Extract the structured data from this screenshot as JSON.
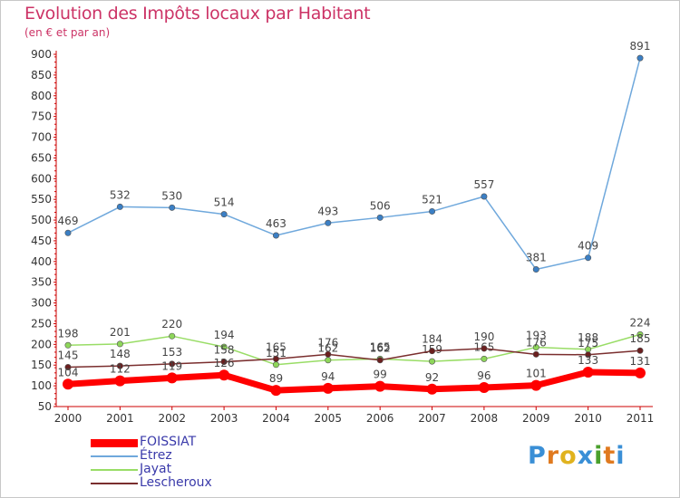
{
  "header": {
    "title": "Evolution des Impôts locaux par Habitant",
    "subtitle": "(en € et par an)"
  },
  "logo": {
    "text": "Proxiti",
    "colors": [
      "#3a8fd6",
      "#e07a1f",
      "#e0b31f",
      "#3a8fd6",
      "#4aa02c",
      "#e07a1f",
      "#3a8fd6"
    ]
  },
  "chart_data": {
    "type": "line",
    "x": [
      "2000",
      "2001",
      "2002",
      "2003",
      "2004",
      "2005",
      "2006",
      "2007",
      "2008",
      "2009",
      "2010",
      "2011"
    ],
    "ylim": [
      50,
      900
    ],
    "yticks": [
      50,
      100,
      150,
      200,
      250,
      300,
      350,
      400,
      450,
      500,
      550,
      600,
      650,
      700,
      750,
      800,
      850,
      900
    ],
    "grid": false,
    "legend_position": "bottom-left",
    "series": [
      {
        "name": "FOISSIAT",
        "color": "#ff0000",
        "width": 7,
        "values": [
          104,
          112,
          119,
          126,
          89,
          94,
          99,
          92,
          96,
          101,
          133,
          131
        ]
      },
      {
        "name": "Étrez",
        "color": "#6fa8dc",
        "width": 1.5,
        "values": [
          469,
          532,
          530,
          514,
          463,
          493,
          506,
          521,
          557,
          381,
          409,
          891
        ]
      },
      {
        "name": "Jayat",
        "color": "#99dd66",
        "width": 1.5,
        "values": [
          198,
          201,
          220,
          194,
          151,
          162,
          165,
          159,
          165,
          193,
          188,
          224
        ]
      },
      {
        "name": "Lescheroux",
        "color": "#7a2e2e",
        "width": 1.5,
        "values": [
          145,
          148,
          153,
          158,
          165,
          176,
          162,
          184,
          190,
          176,
          175,
          185
        ]
      }
    ]
  }
}
